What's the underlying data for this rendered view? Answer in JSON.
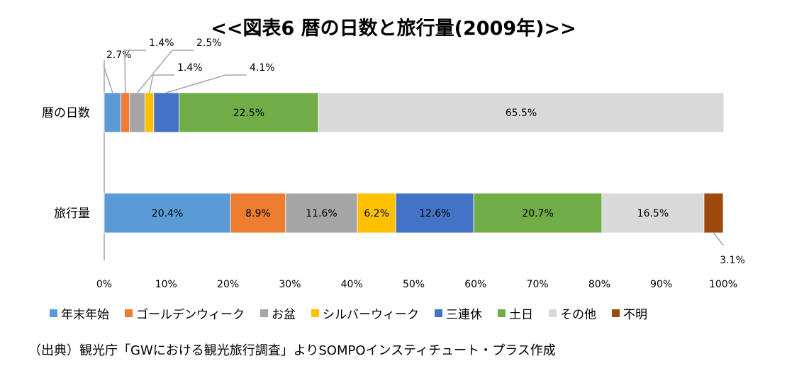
{
  "chart_data": {
    "type": "bar",
    "orientation": "horizontal",
    "stacked": "100%",
    "title": "<<図表6  暦の日数と旅行量(2009年)>>",
    "categories": [
      "暦の日数",
      "旅行量"
    ],
    "series": [
      {
        "name": "年末年始",
        "color": "#5B9BD5",
        "values": [
          2.7,
          20.4
        ]
      },
      {
        "name": "ゴールデンウィーク",
        "color": "#ED7D31",
        "values": [
          1.4,
          8.9
        ]
      },
      {
        "name": "お盆",
        "color": "#A5A5A5",
        "values": [
          2.5,
          11.6
        ]
      },
      {
        "name": "シルバーウィーク",
        "color": "#FFC000",
        "values": [
          1.4,
          6.2
        ]
      },
      {
        "name": "三連休",
        "color": "#4472C4",
        "values": [
          4.1,
          12.6
        ]
      },
      {
        "name": "土日",
        "color": "#70AD47",
        "values": [
          22.5,
          20.7
        ]
      },
      {
        "name": "その他",
        "color": "#D9D9D9",
        "values": [
          65.5,
          16.5
        ]
      },
      {
        "name": "不明",
        "color": "#9E480E",
        "values": [
          0,
          3.1
        ]
      }
    ],
    "xlim": [
      0,
      100
    ],
    "xticks": [
      "0%",
      "10%",
      "20%",
      "30%",
      "40%",
      "50%",
      "60%",
      "70%",
      "80%",
      "90%",
      "100%"
    ],
    "data_labels": [
      [
        "2.7%",
        "1.4%",
        "2.5%",
        "1.4%",
        "4.1%",
        "22.5%",
        "65.5%",
        ""
      ],
      [
        "20.4%",
        "8.9%",
        "11.6%",
        "6.2%",
        "12.6%",
        "20.7%",
        "16.5%",
        "3.1%"
      ]
    ],
    "grid": false,
    "legend_position": "bottom"
  },
  "source_note": "（出典）観光庁「GWにおける観光旅行調査」よりSOMPOインスティチュート・プラス作成"
}
